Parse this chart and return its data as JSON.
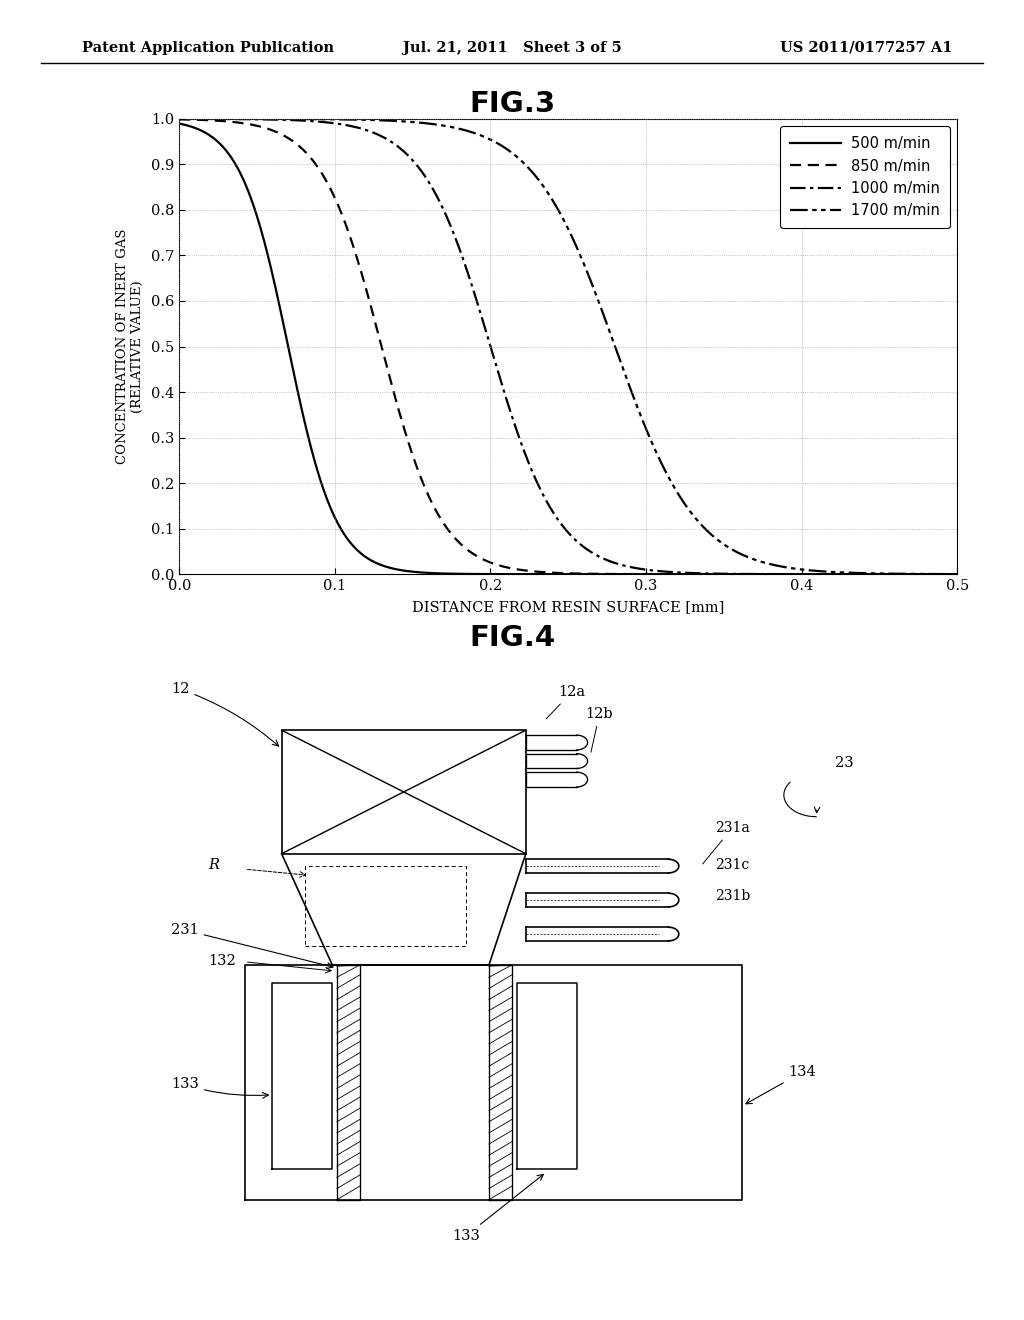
{
  "fig3_title": "FIG.3",
  "fig4_title": "FIG.4",
  "page_header_left": "Patent Application Publication",
  "page_header_center": "Jul. 21, 2011   Sheet 3 of 5",
  "page_header_right": "US 2011/0177257 A1",
  "xlabel": "DISTANCE FROM RESIN SURFACE [mm]",
  "ylabel_line1": "CONCENTRATION OF INERT GAS",
  "ylabel_line2": "(RELATIVE VALUE)",
  "xlim": [
    0.0,
    0.5
  ],
  "ylim": [
    0.0,
    1.0
  ],
  "xticks": [
    0.0,
    0.1,
    0.2,
    0.3,
    0.4,
    0.5
  ],
  "yticks": [
    0.0,
    0.1,
    0.2,
    0.3,
    0.4,
    0.5,
    0.6,
    0.7,
    0.8,
    0.9,
    1.0
  ],
  "midpoints": [
    0.07,
    0.13,
    0.2,
    0.28
  ],
  "ks": [
    65,
    52,
    46,
    38
  ],
  "labels": [
    "500 m/min",
    "850 m/min",
    "1000 m/min",
    "1700 m/min"
  ],
  "background_color": "#ffffff",
  "line_color": "#000000"
}
